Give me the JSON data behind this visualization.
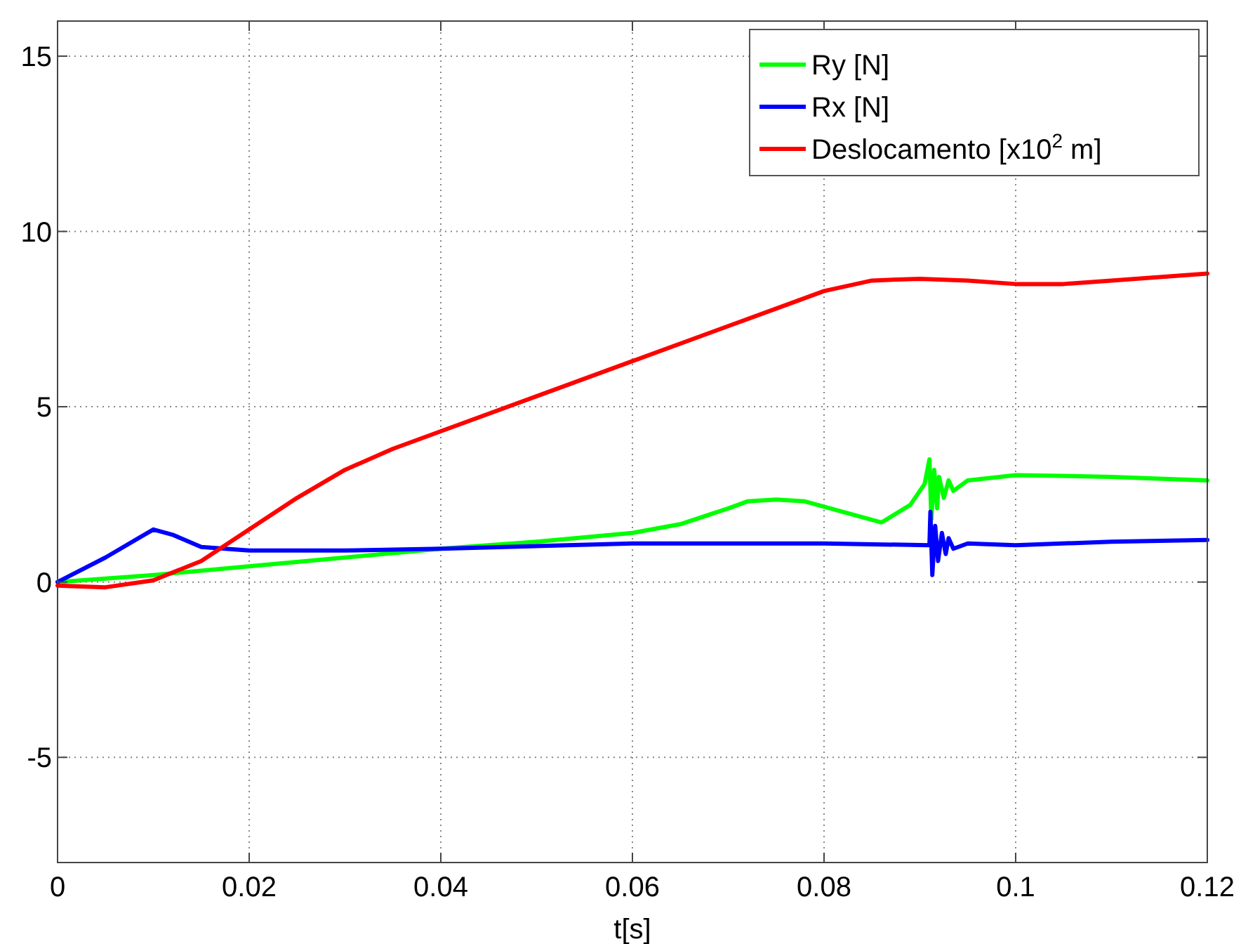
{
  "chart_data": {
    "type": "line",
    "xlabel": "t[s]",
    "xlim": [
      0,
      0.12
    ],
    "xticks": [
      0,
      0.02,
      0.04,
      0.06,
      0.08,
      0.1,
      0.12
    ],
    "ylim": [
      -8,
      16
    ],
    "yticks": [
      -5,
      0,
      5,
      10,
      15
    ],
    "grid": true,
    "legend": "top right",
    "marker": "none",
    "line_style": "solid",
    "series": [
      {
        "name": "Ry [N]",
        "color": "#00ff00",
        "x": [
          0,
          0.01,
          0.02,
          0.03,
          0.04,
          0.05,
          0.06,
          0.065,
          0.07,
          0.072,
          0.075,
          0.078,
          0.082,
          0.086,
          0.089,
          0.0905,
          0.091,
          0.0912,
          0.0915,
          0.0918,
          0.092,
          0.0925,
          0.093,
          0.0935,
          0.095,
          0.1,
          0.11,
          0.12
        ],
        "values": [
          0,
          0.2,
          0.45,
          0.7,
          0.95,
          1.15,
          1.4,
          1.65,
          2.1,
          2.3,
          2.35,
          2.3,
          2.0,
          1.7,
          2.2,
          2.8,
          3.5,
          1.8,
          3.2,
          2.1,
          3.0,
          2.4,
          2.9,
          2.6,
          2.9,
          3.05,
          3.0,
          2.9
        ]
      },
      {
        "name": "Rx [N]",
        "color": "#0000ff",
        "x": [
          0,
          0.005,
          0.01,
          0.012,
          0.015,
          0.02,
          0.03,
          0.04,
          0.06,
          0.08,
          0.091,
          0.0911,
          0.0913,
          0.0916,
          0.0919,
          0.0923,
          0.0927,
          0.093,
          0.0935,
          0.095,
          0.1,
          0.11,
          0.12
        ],
        "values": [
          0,
          0.7,
          1.5,
          1.35,
          1.0,
          0.9,
          0.9,
          0.95,
          1.1,
          1.1,
          1.05,
          2.0,
          0.2,
          1.6,
          0.6,
          1.4,
          0.8,
          1.25,
          0.95,
          1.1,
          1.05,
          1.15,
          1.2
        ]
      },
      {
        "name": "Deslocamento [x10$^{2}$ m]",
        "color": "#ff0000",
        "x": [
          0,
          0.005,
          0.01,
          0.015,
          0.02,
          0.025,
          0.03,
          0.035,
          0.04,
          0.05,
          0.06,
          0.07,
          0.075,
          0.08,
          0.085,
          0.09,
          0.095,
          0.1,
          0.105,
          0.11,
          0.12
        ],
        "values": [
          -0.1,
          -0.15,
          0.05,
          0.6,
          1.5,
          2.4,
          3.2,
          3.8,
          4.3,
          5.3,
          6.3,
          7.3,
          7.8,
          8.3,
          8.6,
          8.65,
          8.6,
          8.5,
          8.5,
          8.6,
          8.8
        ]
      }
    ]
  }
}
